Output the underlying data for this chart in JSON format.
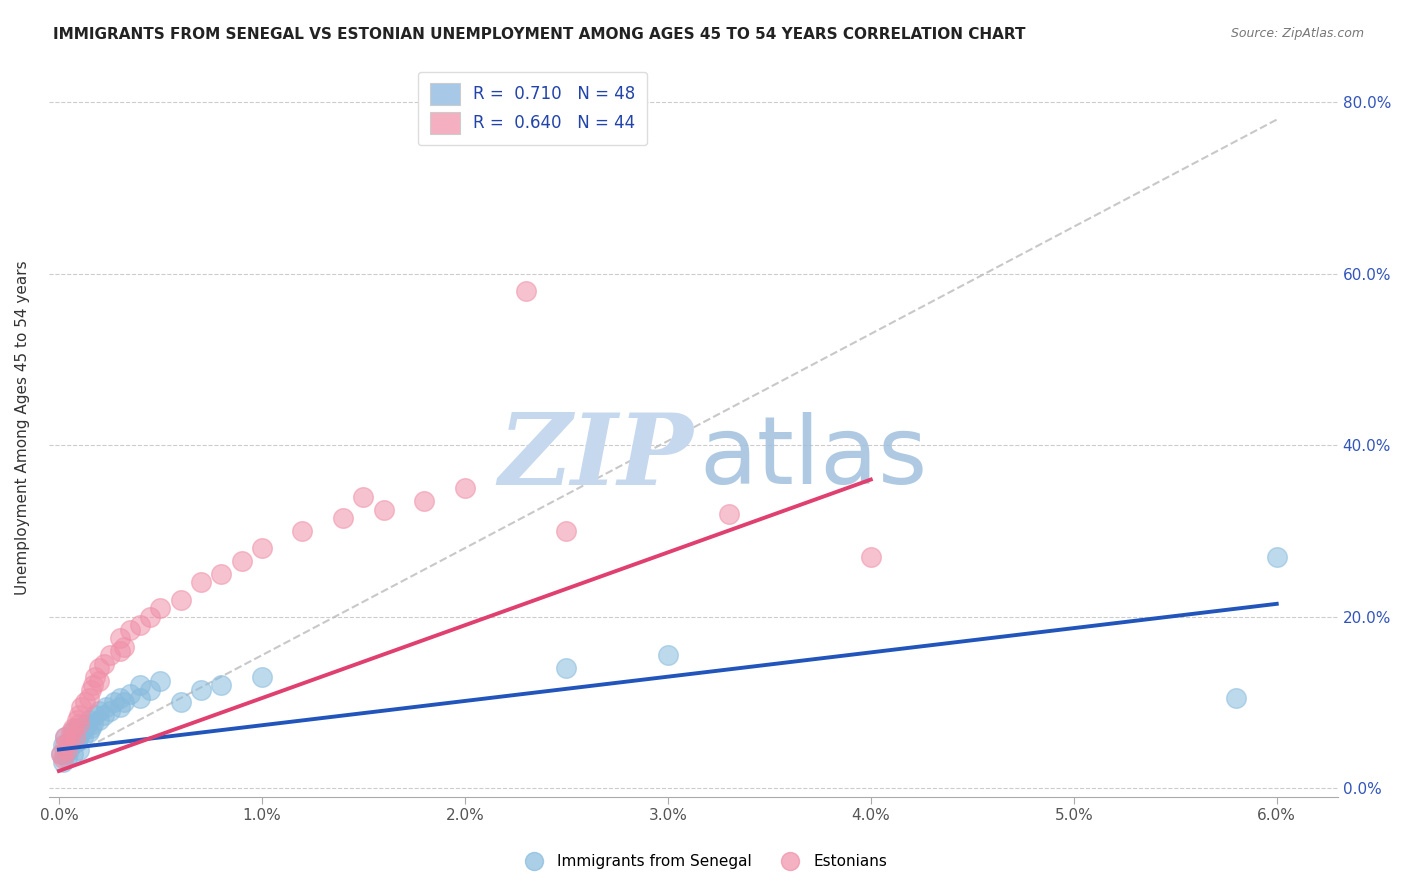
{
  "title": "IMMIGRANTS FROM SENEGAL VS ESTONIAN UNEMPLOYMENT AMONG AGES 45 TO 54 YEARS CORRELATION CHART",
  "source": "Source: ZipAtlas.com",
  "ylabel": "Unemployment Among Ages 45 to 54 years",
  "y_tick_labels": [
    "0.0%",
    "20.0%",
    "40.0%",
    "60.0%",
    "80.0%"
  ],
  "y_tick_values": [
    0.0,
    0.2,
    0.4,
    0.6,
    0.8
  ],
  "x_tick_pos": [
    0.0,
    0.01,
    0.02,
    0.03,
    0.04,
    0.05,
    0.06
  ],
  "x_tick_labels": [
    "0.0%",
    "1.0%",
    "2.0%",
    "3.0%",
    "4.0%",
    "5.0%",
    "6.0%"
  ],
  "legend_series1_label": "R =  0.710   N = 48",
  "legend_series2_label": "R =  0.640   N = 44",
  "legend_series1_color": "#a8c8e8",
  "legend_series2_color": "#f4b0c0",
  "trend_blue_color": "#2255bb",
  "trend_pink_color": "#e04070",
  "trend_gray_color": "#bbbbbb",
  "blue_scatter_color": "#88bbdd",
  "pink_scatter_color": "#f090a8",
  "xlim": [
    -0.0005,
    0.063
  ],
  "ylim": [
    -0.01,
    0.85
  ],
  "blue_points_x": [
    0.0001,
    0.0002,
    0.0002,
    0.0003,
    0.0003,
    0.0004,
    0.0005,
    0.0005,
    0.0006,
    0.0007,
    0.0007,
    0.0008,
    0.0008,
    0.0009,
    0.001,
    0.001,
    0.001,
    0.0011,
    0.0012,
    0.0013,
    0.0014,
    0.0015,
    0.0015,
    0.0016,
    0.0017,
    0.0018,
    0.002,
    0.002,
    0.0022,
    0.0023,
    0.0025,
    0.0027,
    0.003,
    0.003,
    0.0032,
    0.0035,
    0.004,
    0.004,
    0.0045,
    0.005,
    0.006,
    0.007,
    0.008,
    0.01,
    0.025,
    0.03,
    0.058,
    0.06
  ],
  "blue_points_y": [
    0.04,
    0.03,
    0.05,
    0.04,
    0.06,
    0.035,
    0.045,
    0.055,
    0.05,
    0.04,
    0.065,
    0.06,
    0.07,
    0.055,
    0.045,
    0.06,
    0.07,
    0.065,
    0.06,
    0.07,
    0.075,
    0.065,
    0.08,
    0.07,
    0.075,
    0.085,
    0.08,
    0.09,
    0.085,
    0.095,
    0.09,
    0.1,
    0.095,
    0.105,
    0.1,
    0.11,
    0.105,
    0.12,
    0.115,
    0.125,
    0.1,
    0.115,
    0.12,
    0.13,
    0.14,
    0.155,
    0.105,
    0.27
  ],
  "pink_points_x": [
    0.0001,
    0.0002,
    0.0003,
    0.0003,
    0.0004,
    0.0005,
    0.0006,
    0.0007,
    0.0008,
    0.0009,
    0.001,
    0.001,
    0.0011,
    0.0013,
    0.0015,
    0.0016,
    0.0017,
    0.0018,
    0.002,
    0.002,
    0.0022,
    0.0025,
    0.003,
    0.003,
    0.0032,
    0.0035,
    0.004,
    0.0045,
    0.005,
    0.006,
    0.007,
    0.008,
    0.009,
    0.01,
    0.012,
    0.014,
    0.016,
    0.018,
    0.02,
    0.025,
    0.015,
    0.023,
    0.033,
    0.04
  ],
  "pink_points_y": [
    0.04,
    0.035,
    0.05,
    0.06,
    0.045,
    0.055,
    0.065,
    0.07,
    0.06,
    0.08,
    0.075,
    0.085,
    0.095,
    0.1,
    0.105,
    0.115,
    0.12,
    0.13,
    0.125,
    0.14,
    0.145,
    0.155,
    0.16,
    0.175,
    0.165,
    0.185,
    0.19,
    0.2,
    0.21,
    0.22,
    0.24,
    0.25,
    0.265,
    0.28,
    0.3,
    0.315,
    0.325,
    0.335,
    0.35,
    0.3,
    0.34,
    0.58,
    0.32,
    0.27
  ],
  "gray_line_x": [
    0.0,
    0.06
  ],
  "gray_line_y": [
    0.03,
    0.78
  ],
  "blue_trend_x": [
    0.0,
    0.06
  ],
  "blue_trend_y": [
    0.045,
    0.215
  ],
  "pink_trend_x": [
    0.0,
    0.04
  ],
  "pink_trend_y": [
    0.02,
    0.36
  ]
}
